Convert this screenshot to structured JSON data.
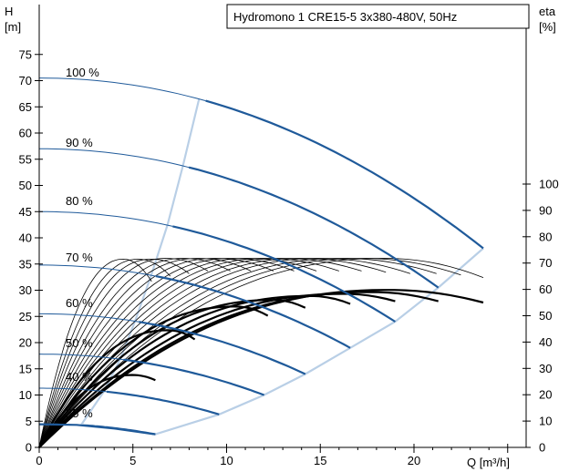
{
  "chart_data": {
    "type": "line",
    "title": "Hydromono 1 CRE15-5  3x380-480V, 50Hz",
    "x_axis": {
      "label": "Q [m³/h]",
      "range": [
        0,
        25
      ],
      "ticks": [
        0,
        5,
        10,
        15,
        20
      ]
    },
    "y_axis_left": {
      "label_top": "H",
      "label_unit": "[m]",
      "range": [
        0,
        80
      ],
      "ticks": [
        0,
        5,
        10,
        15,
        20,
        25,
        30,
        35,
        40,
        45,
        50,
        55,
        60,
        65,
        70,
        75
      ]
    },
    "y_axis_right": {
      "label_top": "eta",
      "label_unit": "[%]",
      "range": [
        0,
        100
      ],
      "ticks": [
        0,
        10,
        20,
        30,
        40,
        50,
        60,
        70,
        80,
        90,
        100
      ]
    },
    "colors": {
      "head_curve": "#1f5a9a",
      "thin_head_curve": "#1f5a9a",
      "envelope": "#b9cfe6",
      "efficiency_curve": "#000000"
    },
    "speed_labels": [
      "100 %",
      "90 %",
      "80 %",
      "70 %",
      "60 %",
      "50 %",
      "40 %",
      "25 %"
    ],
    "head_curves": [
      {
        "speed": "100 %",
        "q_max": 23.7,
        "h0": 70.5,
        "h_end": 38
      },
      {
        "speed": "90 %",
        "q_max": 21.3,
        "h0": 57,
        "h_end": 30.5
      },
      {
        "speed": "80 %",
        "q_max": 19.0,
        "h0": 45,
        "h_end": 24
      },
      {
        "speed": "70 %",
        "q_max": 16.6,
        "h0": 34.8,
        "h_end": 19
      },
      {
        "speed": "60 %",
        "q_max": 14.2,
        "h0": 25.5,
        "h_end": 14
      },
      {
        "speed": "50 %",
        "q_max": 12.0,
        "h0": 17.8,
        "h_end": 10
      },
      {
        "speed": "40 %",
        "q_max": 9.6,
        "h0": 11.3,
        "h_end": 6.3
      },
      {
        "speed": "25 %",
        "q_max": 6.2,
        "h0": 4.5,
        "h_end": 2.5
      }
    ],
    "min_curve": [
      [
        0.0,
        4.4
      ],
      [
        2.0,
        4.3
      ],
      [
        4.0,
        3.6
      ],
      [
        6.2,
        2.5
      ]
    ],
    "efficiency_curves": [
      {
        "q_end": 6.0,
        "peak_q": 4.5,
        "peak_eta": 71.5,
        "end_eta": 63
      },
      {
        "q_end": 7.0,
        "peak_q": 5.3,
        "peak_eta": 71.5,
        "end_eta": 65
      },
      {
        "q_end": 8.0,
        "peak_q": 6.0,
        "peak_eta": 71.5,
        "end_eta": 66
      },
      {
        "q_end": 9.0,
        "peak_q": 6.8,
        "peak_eta": 71.8,
        "end_eta": 67
      },
      {
        "q_end": 10.2,
        "peak_q": 7.7,
        "peak_eta": 71.8,
        "end_eta": 67
      },
      {
        "q_end": 11.3,
        "peak_q": 8.5,
        "peak_eta": 71.8,
        "end_eta": 67
      },
      {
        "q_end": 12.5,
        "peak_q": 9.4,
        "peak_eta": 71.8,
        "end_eta": 67
      },
      {
        "q_end": 13.6,
        "peak_q": 10.3,
        "peak_eta": 71.8,
        "end_eta": 67
      },
      {
        "q_end": 14.8,
        "peak_q": 11.2,
        "peak_eta": 71.8,
        "end_eta": 67
      },
      {
        "q_end": 16.0,
        "peak_q": 12.1,
        "peak_eta": 71.8,
        "end_eta": 67
      },
      {
        "q_end": 17.2,
        "peak_q": 13.0,
        "peak_eta": 71.8,
        "end_eta": 67
      },
      {
        "q_end": 18.5,
        "peak_q": 14.0,
        "peak_eta": 71.8,
        "end_eta": 66.5
      },
      {
        "q_end": 19.8,
        "peak_q": 15.0,
        "peak_eta": 71.8,
        "end_eta": 66
      },
      {
        "q_end": 21.2,
        "peak_q": 16.2,
        "peak_eta": 71.8,
        "end_eta": 66
      },
      {
        "q_end": 22.5,
        "peak_q": 17.3,
        "peak_eta": 71.8,
        "end_eta": 65.5
      },
      {
        "q_end": 23.7,
        "peak_q": 18.5,
        "peak_eta": 71.8,
        "end_eta": 64.5
      }
    ],
    "efficiency_curves_bold": [
      {
        "q_end": 6.2,
        "peak_q": 5.0,
        "peak_eta": 27.5,
        "end_eta": 25.5
      },
      {
        "q_end": 8.3,
        "peak_q": 6.9,
        "peak_eta": 44.5,
        "end_eta": 41
      },
      {
        "q_end": 12.2,
        "peak_q": 10.5,
        "peak_eta": 53.5,
        "end_eta": 50
      },
      {
        "q_end": 14.2,
        "peak_q": 12.5,
        "peak_eta": 56,
        "end_eta": 53
      },
      {
        "q_end": 16.6,
        "peak_q": 14.5,
        "peak_eta": 57.5,
        "end_eta": 54.5
      },
      {
        "q_end": 19.0,
        "peak_q": 16.3,
        "peak_eta": 58.3,
        "end_eta": 55.5
      },
      {
        "q_end": 21.3,
        "peak_q": 17.8,
        "peak_eta": 59,
        "end_eta": 55.5
      },
      {
        "q_end": 23.7,
        "peak_q": 18.7,
        "peak_eta": 59.8,
        "end_eta": 55
      }
    ]
  }
}
